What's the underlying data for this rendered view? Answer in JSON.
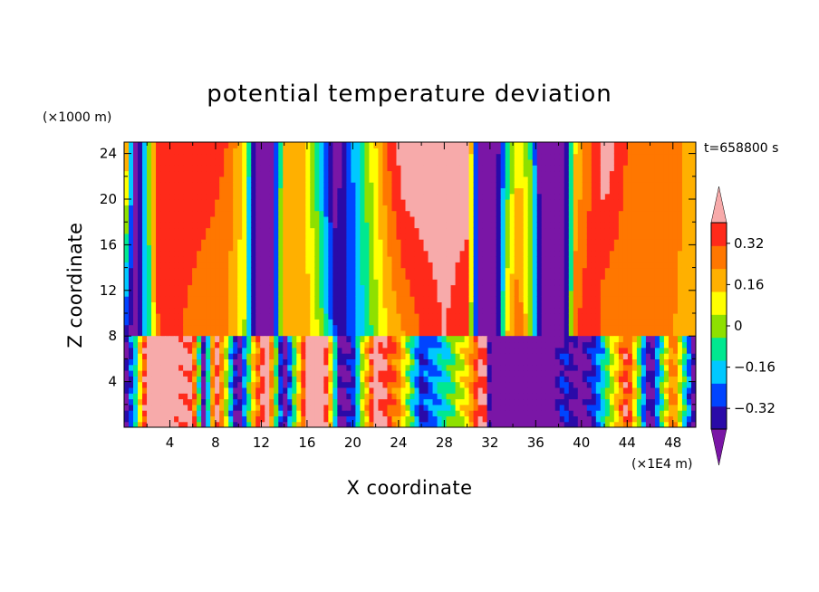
{
  "chart_data": {
    "type": "heatmap",
    "title": "potential temperature deviation",
    "xlabel": "X coordinate",
    "ylabel": "Z coordinate",
    "x_unit": "(×1E4 m)",
    "y_unit": "(×1000 m)",
    "time_label": "t=658800 s",
    "xlim": [
      0,
      50
    ],
    "ylim": [
      0,
      25
    ],
    "x_ticks": [
      4,
      8,
      12,
      16,
      20,
      24,
      28,
      32,
      36,
      40,
      44,
      48
    ],
    "y_ticks": [
      4,
      8,
      12,
      16,
      20,
      24
    ],
    "colorbar": {
      "levels": [
        -0.48,
        -0.4,
        -0.32,
        -0.24,
        -0.16,
        -0.08,
        0,
        0.08,
        0.16,
        0.24,
        0.32,
        0.4
      ],
      "labels": [
        "0.32",
        "0.16",
        "0",
        "−0.16",
        "−0.32"
      ],
      "label_values": [
        0.32,
        0.16,
        0,
        -0.16,
        -0.32
      ],
      "colors": [
        "#7a16a6",
        "#2a0aa8",
        "#0044ff",
        "#00c8ff",
        "#00e890",
        "#8ee000",
        "#ffff00",
        "#ffb000",
        "#ff7700",
        "#ff2a1a",
        "#f7aaaa"
      ],
      "extend": "both"
    },
    "upper_layer": {
      "z_bottom": 8,
      "z_top": 25,
      "columns": [
        {
          "x": 0.0,
          "bottom": -0.32,
          "top": 0.32
        },
        {
          "x": 1.0,
          "bottom": -0.48,
          "top": -0.48
        },
        {
          "x": 2.0,
          "bottom": -0.16,
          "top": -0.16
        },
        {
          "x": 3.0,
          "bottom": 0.24,
          "top": 0.32
        },
        {
          "x": 5.0,
          "bottom": 0.24,
          "top": 0.32
        },
        {
          "x": 7.0,
          "bottom": 0.16,
          "top": 0.32
        },
        {
          "x": 9.0,
          "bottom": 0.16,
          "top": 0.24
        },
        {
          "x": 10.5,
          "bottom": 0.0,
          "top": 0.08
        },
        {
          "x": 11.5,
          "bottom": -0.48,
          "top": -0.48
        },
        {
          "x": 13.0,
          "bottom": -0.48,
          "top": -0.48
        },
        {
          "x": 14.0,
          "bottom": 0.16,
          "top": 0.08
        },
        {
          "x": 15.5,
          "bottom": 0.16,
          "top": 0.16
        },
        {
          "x": 17.0,
          "bottom": 0.0,
          "top": -0.16
        },
        {
          "x": 18.5,
          "bottom": -0.32,
          "top": -0.48
        },
        {
          "x": 19.5,
          "bottom": -0.32,
          "top": -0.32
        },
        {
          "x": 21.0,
          "bottom": -0.16,
          "top": -0.08
        },
        {
          "x": 23.0,
          "bottom": 0.08,
          "top": 0.24
        },
        {
          "x": 24.5,
          "bottom": 0.16,
          "top": 0.4
        },
        {
          "x": 26.0,
          "bottom": 0.24,
          "top": 0.4
        },
        {
          "x": 28.0,
          "bottom": 0.32,
          "top": 0.4
        },
        {
          "x": 30.0,
          "bottom": 0.24,
          "top": 0.4
        },
        {
          "x": 31.0,
          "bottom": -0.48,
          "top": -0.48
        },
        {
          "x": 32.5,
          "bottom": -0.48,
          "top": -0.48
        },
        {
          "x": 33.5,
          "bottom": 0.08,
          "top": -0.16
        },
        {
          "x": 34.5,
          "bottom": 0.24,
          "top": 0.08
        },
        {
          "x": 35.5,
          "bottom": 0.0,
          "top": -0.08
        },
        {
          "x": 36.5,
          "bottom": -0.48,
          "top": -0.48
        },
        {
          "x": 38.5,
          "bottom": -0.48,
          "top": -0.48
        },
        {
          "x": 39.5,
          "bottom": 0.24,
          "top": 0.08
        },
        {
          "x": 41.0,
          "bottom": 0.32,
          "top": 0.24
        },
        {
          "x": 42.0,
          "bottom": 0.16,
          "top": 0.4
        },
        {
          "x": 44.0,
          "bottom": 0.16,
          "top": 0.24
        },
        {
          "x": 46.0,
          "bottom": 0.16,
          "top": 0.16
        },
        {
          "x": 48.0,
          "bottom": 0.16,
          "top": 0.24
        },
        {
          "x": 50.0,
          "bottom": 0.08,
          "top": 0.08
        }
      ]
    },
    "lower_layer": {
      "z_bottom": 0,
      "z_top": 8,
      "columns": [
        {
          "x": 0.0,
          "value": -0.48
        },
        {
          "x": 1.0,
          "value": -0.16
        },
        {
          "x": 2.0,
          "value": 0.4
        },
        {
          "x": 4.0,
          "value": 0.4
        },
        {
          "x": 6.0,
          "value": 0.32
        },
        {
          "x": 7.0,
          "value": -0.48
        },
        {
          "x": 8.0,
          "value": 0.4
        },
        {
          "x": 10.0,
          "value": -0.48
        },
        {
          "x": 11.5,
          "value": 0.16
        },
        {
          "x": 12.5,
          "value": 0.4
        },
        {
          "x": 14.0,
          "value": -0.48
        },
        {
          "x": 16.0,
          "value": 0.4
        },
        {
          "x": 17.5,
          "value": 0.4
        },
        {
          "x": 19.0,
          "value": -0.48
        },
        {
          "x": 20.0,
          "value": -0.32
        },
        {
          "x": 22.0,
          "value": 0.4
        },
        {
          "x": 24.0,
          "value": 0.16
        },
        {
          "x": 26.0,
          "value": -0.32
        },
        {
          "x": 28.0,
          "value": -0.16
        },
        {
          "x": 30.0,
          "value": 0.08
        },
        {
          "x": 31.5,
          "value": 0.4
        },
        {
          "x": 32.0,
          "value": -0.48
        },
        {
          "x": 37.5,
          "value": -0.48
        },
        {
          "x": 38.5,
          "value": -0.32
        },
        {
          "x": 40.0,
          "value": -0.48
        },
        {
          "x": 42.0,
          "value": -0.16
        },
        {
          "x": 44.0,
          "value": 0.32
        },
        {
          "x": 46.0,
          "value": -0.48
        },
        {
          "x": 48.0,
          "value": 0.24
        },
        {
          "x": 50.0,
          "value": -0.48
        }
      ]
    }
  }
}
